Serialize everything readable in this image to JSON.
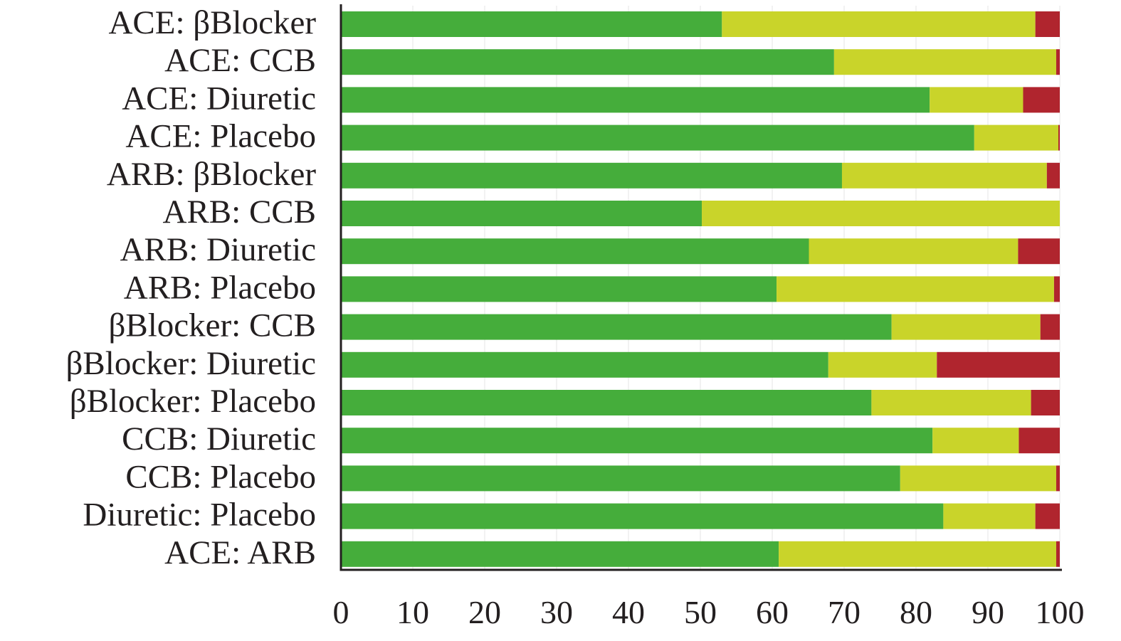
{
  "chart_data": {
    "type": "bar",
    "orientation": "horizontal",
    "stacked": true,
    "categories": [
      "ACE: βBlocker",
      "ACE: CCB",
      "ACE: Diuretic",
      "ACE: Placebo",
      "ARB: βBlocker",
      "ARB: CCB",
      "ARB: Diuretic",
      "ARB: Placebo",
      "βBlocker: CCB",
      "βBlocker: Diuretic",
      "βBlocker: Placebo",
      "CCB: Diuretic",
      "CCB: Placebo",
      "Diuretic: Placebo",
      "ACE: ARB"
    ],
    "series": [
      {
        "values": [
          53.0,
          68.6,
          81.9,
          88.1,
          69.7,
          50.2,
          65.1,
          60.6,
          76.6,
          67.8,
          73.8,
          82.3,
          77.8,
          83.8,
          60.9
        ]
      },
      {
        "values": [
          43.6,
          30.9,
          13.0,
          11.7,
          28.5,
          49.8,
          29.1,
          38.6,
          20.7,
          15.1,
          22.2,
          12.0,
          21.7,
          12.8,
          38.6
        ]
      },
      {
        "values": [
          3.4,
          0.5,
          5.1,
          0.2,
          1.8,
          0.0,
          5.8,
          0.8,
          2.7,
          17.1,
          4.0,
          5.7,
          0.5,
          3.4,
          0.5
        ]
      }
    ],
    "colors": [
      "#45ad3b",
      "#c9d42a",
      "#b0252e"
    ],
    "xlim": [
      0,
      100
    ],
    "xticks": [
      "0",
      "10",
      "20",
      "30",
      "40",
      "50",
      "60",
      "70",
      "80",
      "90",
      "100"
    ],
    "grid": false,
    "legend": "none"
  }
}
